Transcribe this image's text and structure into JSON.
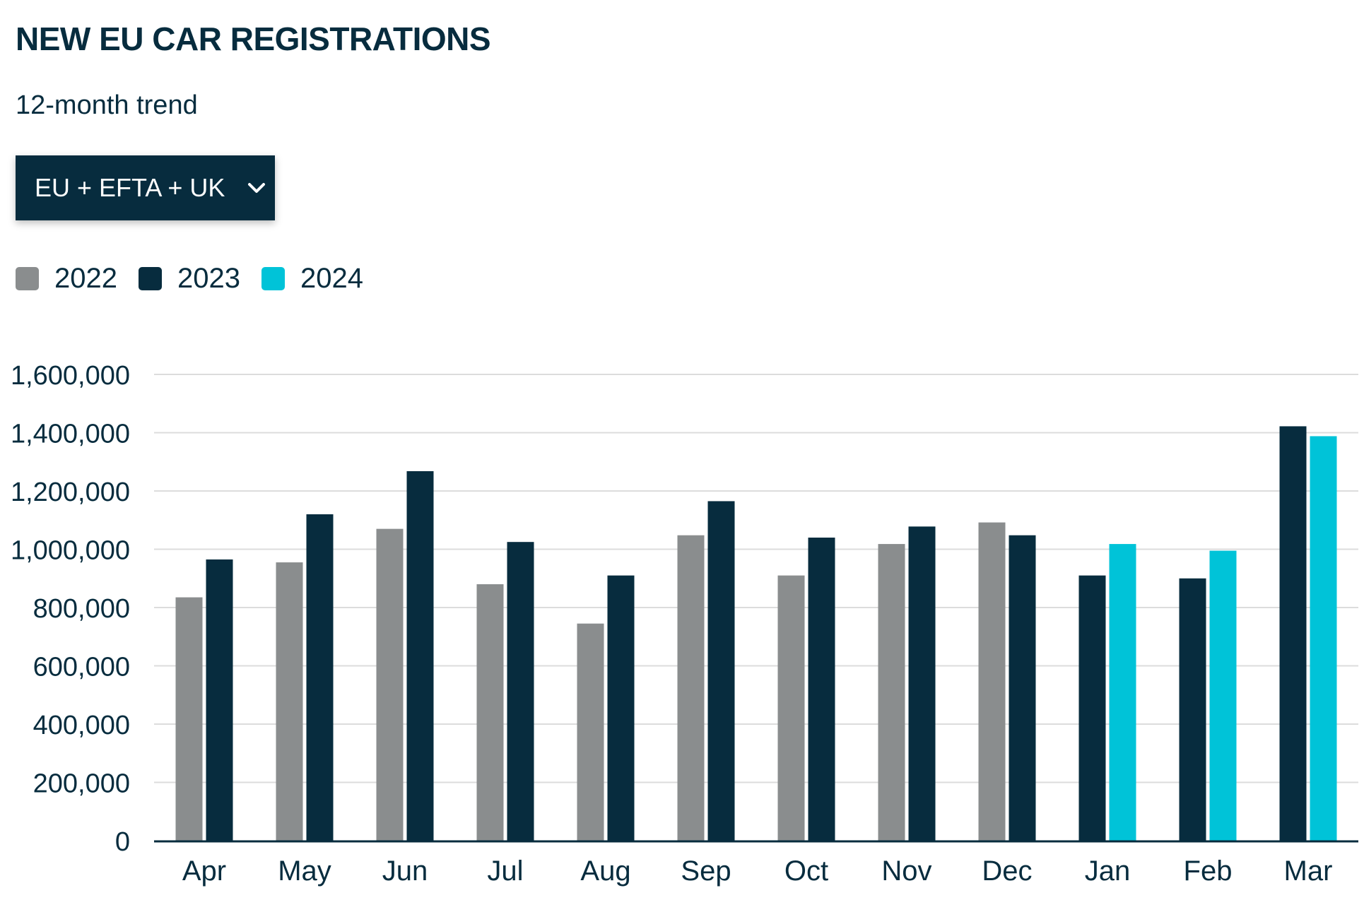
{
  "title": "NEW EU CAR REGISTRATIONS",
  "subtitle": "12-month trend",
  "region_select": {
    "selected": "EU + EFTA + UK",
    "icon": "chevron-down-icon"
  },
  "colors": {
    "2022": "#8a8d8e",
    "2023": "#072c3e",
    "2024": "#00c3d8",
    "grid": "#dcdcdc",
    "axis": "#072c3e"
  },
  "chart_data": {
    "type": "bar",
    "categories": [
      "Apr",
      "May",
      "Jun",
      "Jul",
      "Aug",
      "Sep",
      "Oct",
      "Nov",
      "Dec",
      "Jan",
      "Feb",
      "Mar"
    ],
    "series": [
      {
        "name": "2022",
        "values": [
          835000,
          955000,
          1070000,
          880000,
          745000,
          1048000,
          910000,
          1018000,
          1092000,
          null,
          null,
          null
        ]
      },
      {
        "name": "2023",
        "values": [
          965000,
          1120000,
          1268000,
          1025000,
          910000,
          1165000,
          1040000,
          1078000,
          1048000,
          910000,
          900000,
          1422000
        ]
      },
      {
        "name": "2024",
        "values": [
          null,
          null,
          null,
          null,
          null,
          null,
          null,
          null,
          null,
          1018000,
          995000,
          1388000
        ]
      }
    ],
    "yticks": [
      "0",
      "200,000",
      "400,000",
      "600,000",
      "800,000",
      "1,000,000",
      "1,200,000",
      "1,400,000",
      "1,600,000"
    ],
    "ylim": [
      0,
      1600000
    ],
    "grid": true,
    "legend_position": "top-left"
  }
}
